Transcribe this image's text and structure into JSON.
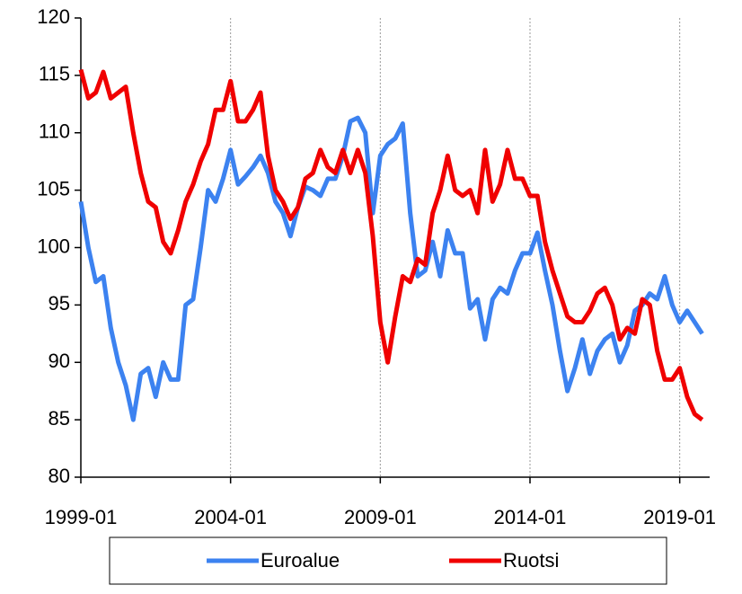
{
  "chart_data": {
    "type": "line",
    "x": [
      "1999-01",
      "1999-04",
      "1999-07",
      "1999-10",
      "2000-01",
      "2000-04",
      "2000-07",
      "2000-10",
      "2001-01",
      "2001-04",
      "2001-07",
      "2001-10",
      "2002-01",
      "2002-04",
      "2002-07",
      "2002-10",
      "2003-01",
      "2003-04",
      "2003-07",
      "2003-10",
      "2004-01",
      "2004-04",
      "2004-07",
      "2004-10",
      "2005-01",
      "2005-04",
      "2005-07",
      "2005-10",
      "2006-01",
      "2006-04",
      "2006-07",
      "2006-10",
      "2007-01",
      "2007-04",
      "2007-07",
      "2007-10",
      "2008-01",
      "2008-04",
      "2008-07",
      "2008-10",
      "2009-01",
      "2009-04",
      "2009-07",
      "2009-10",
      "2010-01",
      "2010-04",
      "2010-07",
      "2010-10",
      "2011-01",
      "2011-04",
      "2011-07",
      "2011-10",
      "2012-01",
      "2012-04",
      "2012-07",
      "2012-10",
      "2013-01",
      "2013-04",
      "2013-07",
      "2013-10",
      "2014-01",
      "2014-04",
      "2014-07",
      "2014-10",
      "2015-01",
      "2015-04",
      "2015-07",
      "2015-10",
      "2016-01",
      "2016-04",
      "2016-07",
      "2016-10",
      "2017-01",
      "2017-04",
      "2017-07",
      "2017-10",
      "2018-01",
      "2018-04",
      "2018-07",
      "2018-10",
      "2019-01",
      "2019-04",
      "2019-07",
      "2019-10"
    ],
    "series": [
      {
        "name": "Euroalue",
        "color": "#3c82f0",
        "values": [
          104,
          100,
          97,
          97.5,
          93,
          90,
          88,
          85,
          89,
          89.5,
          87,
          90,
          88.5,
          88.5,
          95,
          95.5,
          100,
          105,
          104,
          106,
          108.5,
          105.5,
          106.2,
          107,
          108,
          106.5,
          104,
          103,
          101,
          103.5,
          105.3,
          105,
          104.5,
          106,
          106,
          108,
          111,
          111.3,
          110,
          103,
          108,
          109,
          109.5,
          110.8,
          103,
          97.5,
          98,
          100.5,
          97.5,
          101.5,
          99.5,
          99.5,
          94.7,
          95.5,
          92,
          95.5,
          96.5,
          96,
          98,
          99.5,
          99.5,
          101.3,
          98,
          95,
          91,
          87.5,
          89.5,
          92,
          89,
          91,
          92,
          92.5,
          90,
          91.5,
          94.5,
          95,
          96,
          95.5,
          97.5,
          95,
          93.5,
          94.5,
          93.5,
          92.5
        ]
      },
      {
        "name": "Ruotsi",
        "color": "#f00000",
        "values": [
          115.5,
          113,
          113.5,
          115.3,
          113,
          113.5,
          114,
          110,
          106.5,
          104,
          103.5,
          100.5,
          99.5,
          101.5,
          104,
          105.5,
          107.5,
          109,
          112,
          112,
          114.5,
          111,
          111,
          112,
          113.5,
          108,
          105,
          104,
          102.5,
          103.5,
          106,
          106.5,
          108.5,
          107,
          106.5,
          108.5,
          106.5,
          108.5,
          106.5,
          101,
          93.5,
          90,
          94,
          97.5,
          97,
          99,
          98.5,
          103,
          105,
          108,
          105,
          104.5,
          105,
          103,
          108.5,
          104,
          105.5,
          108.5,
          106,
          106,
          104.5,
          104.5,
          100.5,
          98,
          96,
          94,
          93.5,
          93.5,
          94.5,
          96,
          96.5,
          95,
          92,
          93,
          92.5,
          95.5,
          95,
          91,
          88.5,
          88.5,
          89.5,
          87,
          85.5,
          85
        ]
      }
    ],
    "xlim": [
      "1999-01",
      "2020-01"
    ],
    "xticks": [
      "1999-01",
      "2004-01",
      "2009-01",
      "2014-01",
      "2019-01"
    ],
    "ylim": [
      80,
      120
    ],
    "yticks": [
      80,
      85,
      90,
      95,
      100,
      105,
      110,
      115,
      120
    ],
    "grid": true,
    "legend": "bottom"
  }
}
